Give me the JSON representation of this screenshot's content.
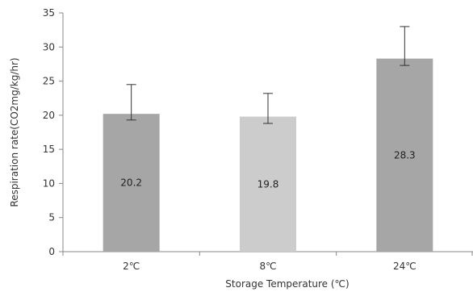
{
  "chart_data": {
    "type": "bar",
    "categories": [
      "2℃",
      "8℃",
      "24℃"
    ],
    "values": [
      20.2,
      19.8,
      28.3
    ],
    "data_labels": [
      "20.2",
      "19.8",
      "28.3"
    ],
    "error_bars": [
      {
        "low": 19.3,
        "high": 24.5
      },
      {
        "low": 18.8,
        "high": 23.2
      },
      {
        "low": 27.3,
        "high": 33.0
      }
    ],
    "xlabel": "Storage Temperature (℃)",
    "ylabel": "Respiration rate(CO2mg/kg/hr)",
    "ylim": [
      0,
      35
    ],
    "yticks": [
      0,
      5,
      10,
      15,
      20,
      25,
      30,
      35
    ],
    "grid": false,
    "legend": "none",
    "colors": [
      "#a6a6a6",
      "#cccccc",
      "#a6a6a6"
    ],
    "error_bar_color": "#333333",
    "axis_color": "#888888"
  }
}
